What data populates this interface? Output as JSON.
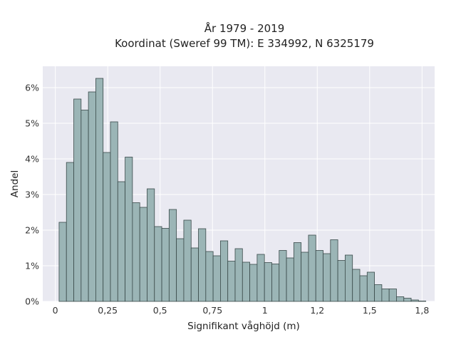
{
  "chart_data": {
    "type": "bar",
    "title": "År 1979 - 2019",
    "subtitle": "Koordinat (Sweref 99 TM): E 334992, N 6325179",
    "xlabel": "Signifikant våghöjd (m)",
    "ylabel": "Andel",
    "xlim": [
      -0.06,
      1.81
    ],
    "ylim": [
      0,
      0.066
    ],
    "grid": true,
    "x_ticks": [
      {
        "value": 0,
        "label": "0"
      },
      {
        "value": 0.25,
        "label": "0,25"
      },
      {
        "value": 0.5,
        "label": "0,5"
      },
      {
        "value": 0.75,
        "label": "0,75"
      },
      {
        "value": 1,
        "label": "1"
      },
      {
        "value": 1.25,
        "label": "1,2"
      },
      {
        "value": 1.5,
        "label": "1,5"
      },
      {
        "value": 1.75,
        "label": "1,8"
      }
    ],
    "y_ticks": [
      {
        "value": 0,
        "label": "0%"
      },
      {
        "value": 0.01,
        "label": "1%"
      },
      {
        "value": 0.02,
        "label": "2%"
      },
      {
        "value": 0.03,
        "label": "3%"
      },
      {
        "value": 0.04,
        "label": "4%"
      },
      {
        "value": 0.05,
        "label": "5%"
      },
      {
        "value": 0.06,
        "label": "6%"
      }
    ],
    "bin_start": 0.018,
    "bin_width": 0.035,
    "values": [
      0.0222,
      0.039,
      0.0568,
      0.0537,
      0.0588,
      0.0626,
      0.0418,
      0.0504,
      0.0336,
      0.0405,
      0.0277,
      0.0264,
      0.0316,
      0.021,
      0.0205,
      0.0258,
      0.0176,
      0.0228,
      0.015,
      0.0204,
      0.014,
      0.0128,
      0.017,
      0.0113,
      0.0148,
      0.011,
      0.0104,
      0.0132,
      0.0109,
      0.0105,
      0.0143,
      0.0122,
      0.0165,
      0.0138,
      0.0186,
      0.0143,
      0.0134,
      0.0173,
      0.0115,
      0.013,
      0.009,
      0.0072,
      0.0082,
      0.0047,
      0.0035,
      0.0035,
      0.0013,
      0.0009,
      0.0004,
      0.0001
    ],
    "colors": {
      "bar_fill": "#9bb5b6",
      "bar_stroke": "#3a4a4a",
      "plot_background": "#e9e9f1",
      "grid": "#ffffff"
    }
  }
}
